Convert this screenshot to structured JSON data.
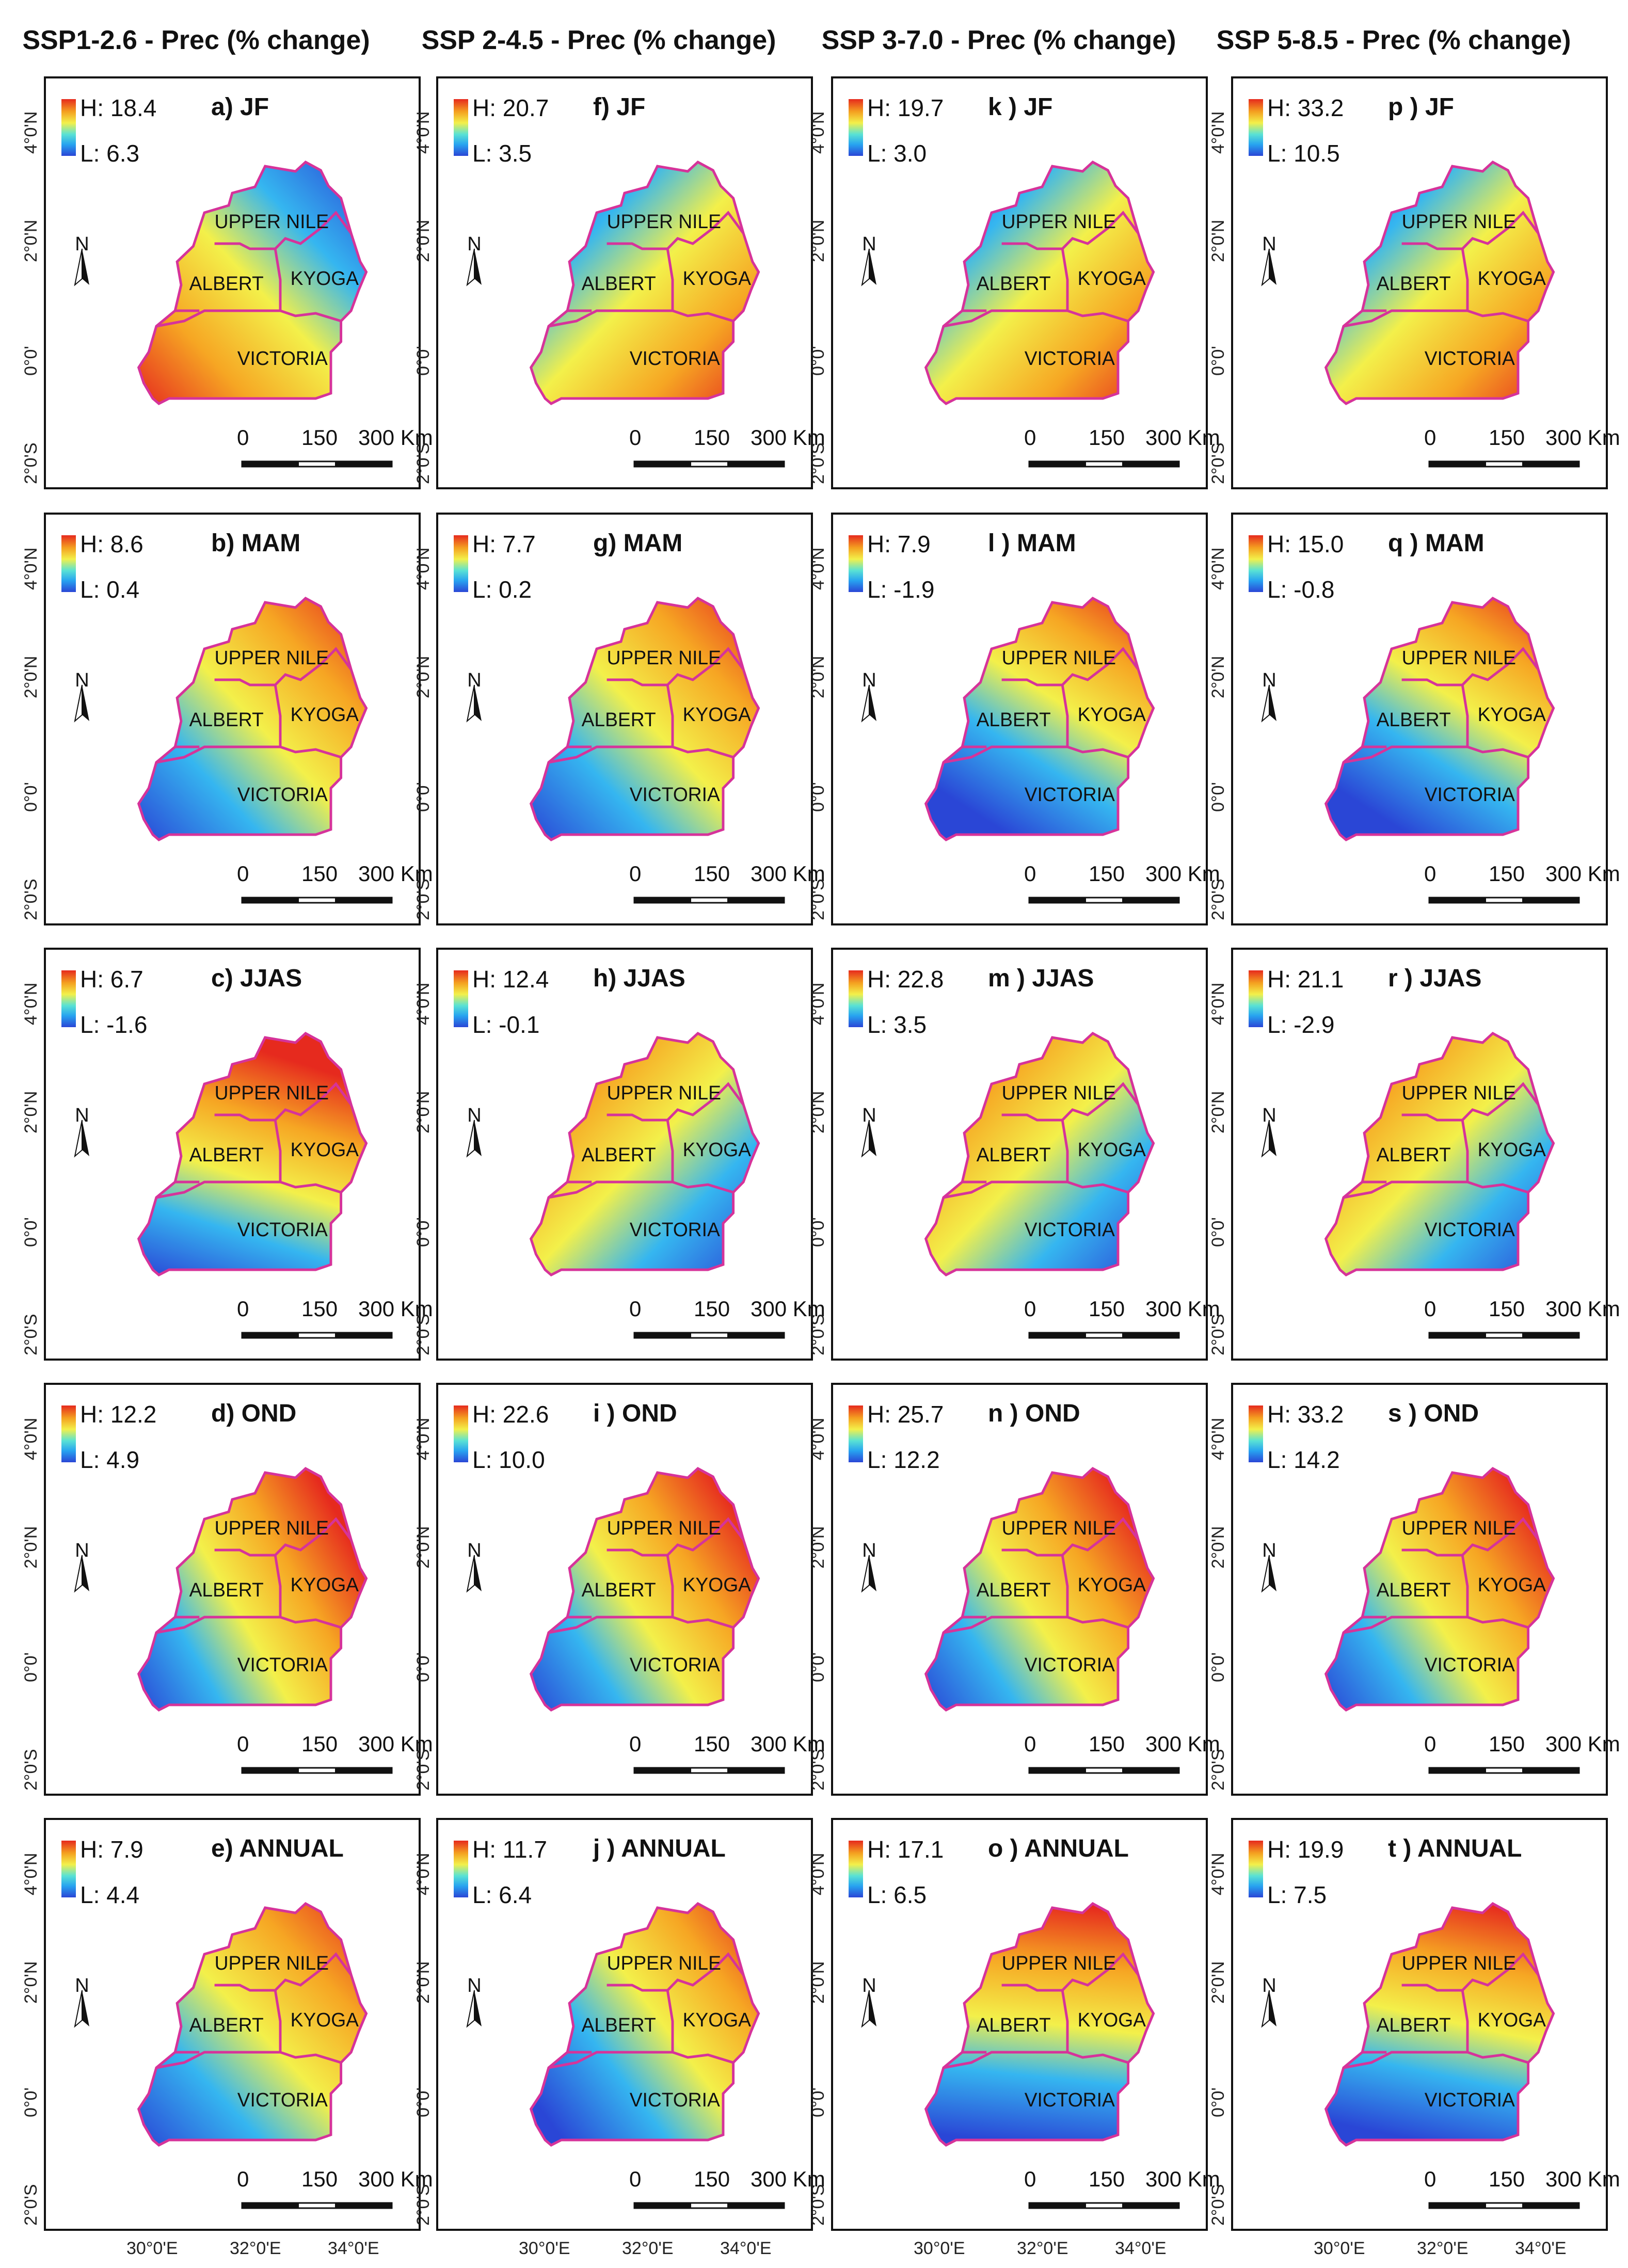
{
  "column_titles": [
    "SSP1-2.6 - Prec (% change)",
    "SSP 2-4.5 - Prec (% change)",
    "SSP 3-7.0 - Prec (% change)",
    "SSP 5-8.5 - Prec (% change)"
  ],
  "regions": [
    "UPPER NILE",
    "ALBERT",
    "KYOGA",
    "VICTORIA"
  ],
  "north_label": "N",
  "scale_labels": [
    "0",
    "150",
    "300 Km"
  ],
  "y_ticks": [
    "4°0'N",
    "2°0'N",
    "0°0'",
    "2°0'S"
  ],
  "x_ticks": [
    "30°0'E",
    "32°0'E",
    "34°0'E"
  ],
  "colors": {
    "high": "#e62a1e",
    "mid": "#f3f04a",
    "low": "#2a46d6",
    "boundary": "#d6339a"
  },
  "panels": [
    {
      "label": "a) JF",
      "high": "H: 18.4",
      "low": "L: 6.3"
    },
    {
      "label": "b) MAM",
      "high": "H: 8.6",
      "low": "L: 0.4"
    },
    {
      "label": "c) JJAS",
      "high": "H: 6.7",
      "low": "L: -1.6"
    },
    {
      "label": "d) OND",
      "high": "H: 12.2",
      "low": "L: 4.9"
    },
    {
      "label": "e) ANNUAL",
      "high": "H: 7.9",
      "low": "L: 4.4"
    },
    {
      "label": "f) JF",
      "high": "H: 20.7",
      "low": "L: 3.5"
    },
    {
      "label": "g) MAM",
      "high": "H: 7.7",
      "low": "L: 0.2"
    },
    {
      "label": "h) JJAS",
      "high": "H: 12.4",
      "low": "L: -0.1"
    },
    {
      "label": "i ) OND",
      "high": "H: 22.6",
      "low": "L: 10.0"
    },
    {
      "label": "j ) ANNUAL",
      "high": "H: 11.7",
      "low": "L: 6.4"
    },
    {
      "label": "k ) JF",
      "high": "H: 19.7",
      "low": "L: 3.0"
    },
    {
      "label": "l ) MAM",
      "high": "H: 7.9",
      "low": "L: -1.9"
    },
    {
      "label": "m ) JJAS",
      "high": "H: 22.8",
      "low": "L: 3.5"
    },
    {
      "label": "n ) OND",
      "high": "H: 25.7",
      "low": "L: 12.2"
    },
    {
      "label": "o ) ANNUAL",
      "high": "H: 17.1",
      "low": "L: 6.5"
    },
    {
      "label": "p ) JF",
      "high": "H: 33.2",
      "low": "L: 10.5"
    },
    {
      "label": "q ) MAM",
      "high": "H: 15.0",
      "low": "L: -0.8"
    },
    {
      "label": "r ) JJAS",
      "high": "H: 21.1",
      "low": "L: -2.9"
    },
    {
      "label": "s ) OND",
      "high": "H: 33.2",
      "low": "L: 14.2"
    },
    {
      "label": "t ) ANNUAL",
      "high": "H: 19.9",
      "low": "L: 7.5"
    }
  ]
}
